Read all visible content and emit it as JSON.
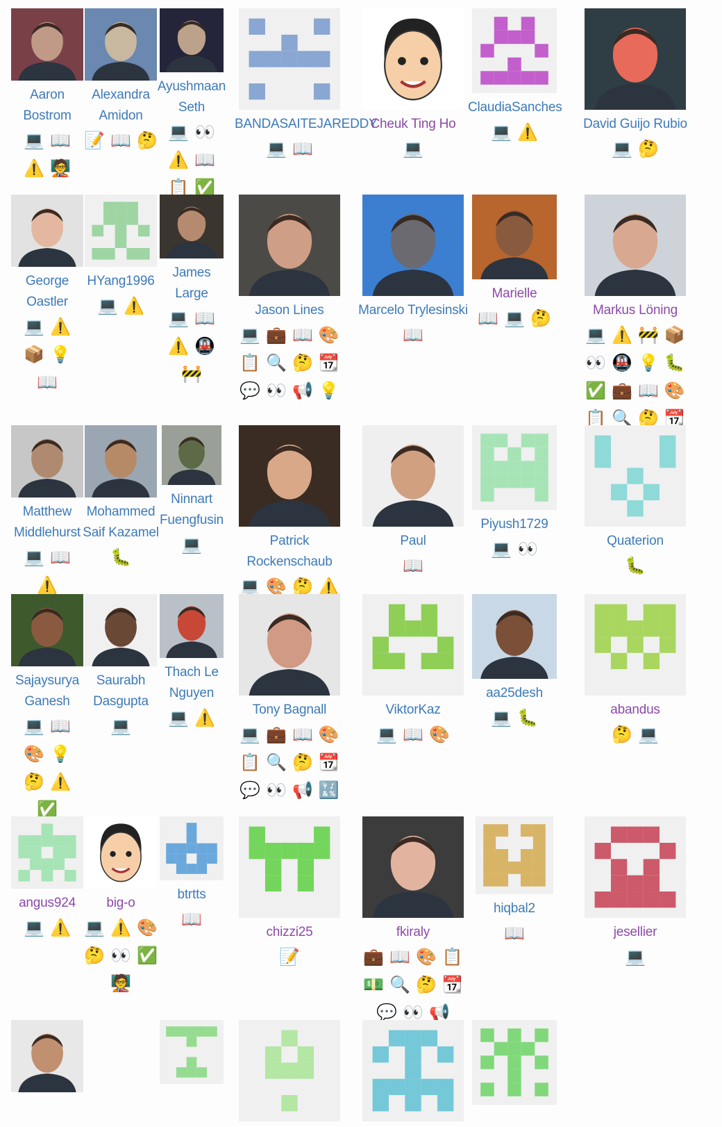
{
  "contributors": [
    {
      "name": "Aaron Bostrom",
      "emoji": "💻📖⚠️🧑‍🏫",
      "avatar_type": "photo",
      "avatar_colors": [
        "#7a4048",
        "#c09a86"
      ]
    },
    {
      "name": "Alexandra Amidon",
      "emoji": "📝📖🤔",
      "avatar_type": "photo",
      "avatar_colors": [
        "#6a88b0",
        "#c8b8a0"
      ]
    },
    {
      "name": "Ayushmaan Seth",
      "emoji": "💻👀⚠️📖📋✅",
      "avatar_type": "photo",
      "avatar_colors": [
        "#24253a",
        "#bca28a"
      ]
    },
    {
      "name": "BANDASAITEJAREDDY",
      "emoji": "💻📖",
      "avatar_type": "identicon",
      "avatar_colors": [
        "#8aa6d2"
      ]
    },
    {
      "name": "Cheuk Ting Ho",
      "emoji": "💻",
      "avatar_type": "cartoon",
      "avatar_colors": [
        "#222222",
        "#f6cfa8"
      ]
    },
    {
      "name": "ClaudiaSanches",
      "emoji": "💻⚠️",
      "avatar_type": "identicon",
      "avatar_colors": [
        "#c25fcc"
      ]
    },
    {
      "name": "David Guijo Rubio",
      "emoji": "💻🤔",
      "avatar_type": "photo",
      "avatar_colors": [
        "#2f3e44",
        "#e86a5a"
      ]
    },
    {
      "name": "George Oastler",
      "emoji": "💻⚠️📦💡📖",
      "avatar_type": "photo",
      "avatar_colors": [
        "#e2e2e2",
        "#e4b8a0"
      ]
    },
    {
      "name": "HYang1996",
      "emoji": "💻⚠️",
      "avatar_type": "identicon",
      "avatar_colors": [
        "#9ed5a3"
      ]
    },
    {
      "name": "James Large",
      "emoji": "💻📖⚠️🚇🚧",
      "avatar_type": "photo",
      "avatar_colors": [
        "#3b3530",
        "#b58a6e"
      ]
    },
    {
      "name": "Jason Lines",
      "emoji": "💻💼📖🎨📋🔍🤔📆💬👀📢💡",
      "avatar_type": "photo",
      "avatar_colors": [
        "#4c4a46",
        "#cf9e86"
      ]
    },
    {
      "name": "Marcelo Trylesinski",
      "emoji": "📖",
      "avatar_type": "photo",
      "avatar_colors": [
        "#3c7ed0",
        "#6a6a70"
      ]
    },
    {
      "name": "Marielle",
      "emoji": "📖💻🤔",
      "avatar_type": "photo",
      "avatar_colors": [
        "#b8652e",
        "#8a5a3e"
      ]
    },
    {
      "name": "Markus Löning",
      "emoji": "💻⚠️🚧📦👀🚇💡🐛✅💼📖🎨📋🔍🤔📆💬📢🧑‍🏫",
      "avatar_type": "photo",
      "avatar_colors": [
        "#cdd3d9",
        "#d8a890"
      ]
    },
    {
      "name": "Matthew Middlehurst",
      "emoji": "💻📖⚠️",
      "avatar_type": "photo",
      "avatar_colors": [
        "#c7c7c7",
        "#b08a70"
      ]
    },
    {
      "name": "Mohammed Saif Kazamel",
      "emoji": "🐛",
      "avatar_type": "photo",
      "avatar_colors": [
        "#9aa6b2",
        "#b68a66"
      ]
    },
    {
      "name": "Ninnart Fuengfusin",
      "emoji": "💻",
      "avatar_type": "photo",
      "avatar_colors": [
        "#9aa098",
        "#5d6a48"
      ]
    },
    {
      "name": "Patrick Rockenschaub",
      "emoji": "💻🎨🤔⚠️",
      "avatar_type": "photo",
      "avatar_colors": [
        "#3a2c22",
        "#d8a888"
      ]
    },
    {
      "name": "Paul",
      "emoji": "📖",
      "avatar_type": "photo",
      "avatar_colors": [
        "#efefef",
        "#d0a080"
      ]
    },
    {
      "name": "Piyush1729",
      "emoji": "💻👀",
      "avatar_type": "identicon",
      "avatar_colors": [
        "#a6e4b6"
      ]
    },
    {
      "name": "Quaterion",
      "emoji": "🐛",
      "avatar_type": "identicon",
      "avatar_colors": [
        "#8ddad8"
      ]
    },
    {
      "name": "Sajaysurya Ganesh",
      "emoji": "💻📖🎨💡🤔⚠️✅",
      "avatar_type": "photo",
      "avatar_colors": [
        "#3e5a2c",
        "#8a5a40"
      ]
    },
    {
      "name": "Saurabh Dasgupta",
      "emoji": "💻",
      "avatar_type": "photo",
      "avatar_colors": [
        "#f0f0f0",
        "#6a4836"
      ]
    },
    {
      "name": "Thach Le Nguyen",
      "emoji": "💻⚠️",
      "avatar_type": "photo",
      "avatar_colors": [
        "#b9c0c8",
        "#c84838"
      ]
    },
    {
      "name": "Tony Bagnall",
      "emoji": "💻💼📖🎨📋🔍🤔📆💬👀📢🔣",
      "avatar_type": "photo",
      "avatar_colors": [
        "#e6e6e6",
        "#d09a84"
      ]
    },
    {
      "name": "ViktorKaz",
      "emoji": "💻📖🎨",
      "avatar_type": "identicon",
      "avatar_colors": [
        "#8fcf55"
      ]
    },
    {
      "name": "aa25desh",
      "emoji": "💻🐛",
      "avatar_type": "photo",
      "avatar_colors": [
        "#c8d8e6",
        "#7a5038"
      ]
    },
    {
      "name": "abandus",
      "emoji": "🤔💻",
      "avatar_type": "identicon",
      "avatar_colors": [
        "#a8d65e"
      ]
    },
    {
      "name": "angus924",
      "emoji": "💻⚠️",
      "avatar_type": "identicon",
      "avatar_colors": [
        "#a6e4b6"
      ]
    },
    {
      "name": "big-o",
      "emoji": "💻⚠️🎨🤔👀✅🧑‍🏫",
      "avatar_type": "cartoon",
      "avatar_colors": [
        "#222222",
        "#f6cfa8"
      ]
    },
    {
      "name": "btrtts",
      "emoji": "📖",
      "avatar_type": "identicon",
      "avatar_colors": [
        "#6aa8dc"
      ]
    },
    {
      "name": "chizzi25",
      "emoji": "📝",
      "avatar_type": "identicon",
      "avatar_colors": [
        "#74d55c"
      ]
    },
    {
      "name": "fkiraly",
      "emoji": "💼📖🎨📋💵🔍🤔📆💬👀📢",
      "avatar_type": "photo",
      "avatar_colors": [
        "#3c3c3c",
        "#e2b4a0"
      ]
    },
    {
      "name": "hiqbal2",
      "emoji": "📖",
      "avatar_type": "identicon",
      "avatar_colors": [
        "#d8b466"
      ]
    },
    {
      "name": "jesellier",
      "emoji": "💻",
      "avatar_type": "identicon",
      "avatar_colors": [
        "#cc5a6a"
      ]
    },
    {
      "name": "",
      "emoji": "",
      "avatar_type": "photo",
      "avatar_colors": [
        "#e8e8e8",
        "#c09070"
      ]
    },
    {
      "name": "",
      "emoji": "",
      "avatar_type": "none",
      "avatar_colors": []
    },
    {
      "name": "",
      "emoji": "",
      "avatar_type": "identicon",
      "avatar_colors": [
        "#96dc90"
      ]
    },
    {
      "name": "",
      "emoji": "",
      "avatar_type": "identicon",
      "avatar_colors": [
        "#b4e6a4"
      ]
    },
    {
      "name": "",
      "emoji": "",
      "avatar_type": "identicon",
      "avatar_colors": [
        "#74c8d8"
      ]
    },
    {
      "name": "",
      "emoji": "",
      "avatar_type": "identicon",
      "avatar_colors": [
        "#80d87a"
      ]
    }
  ]
}
